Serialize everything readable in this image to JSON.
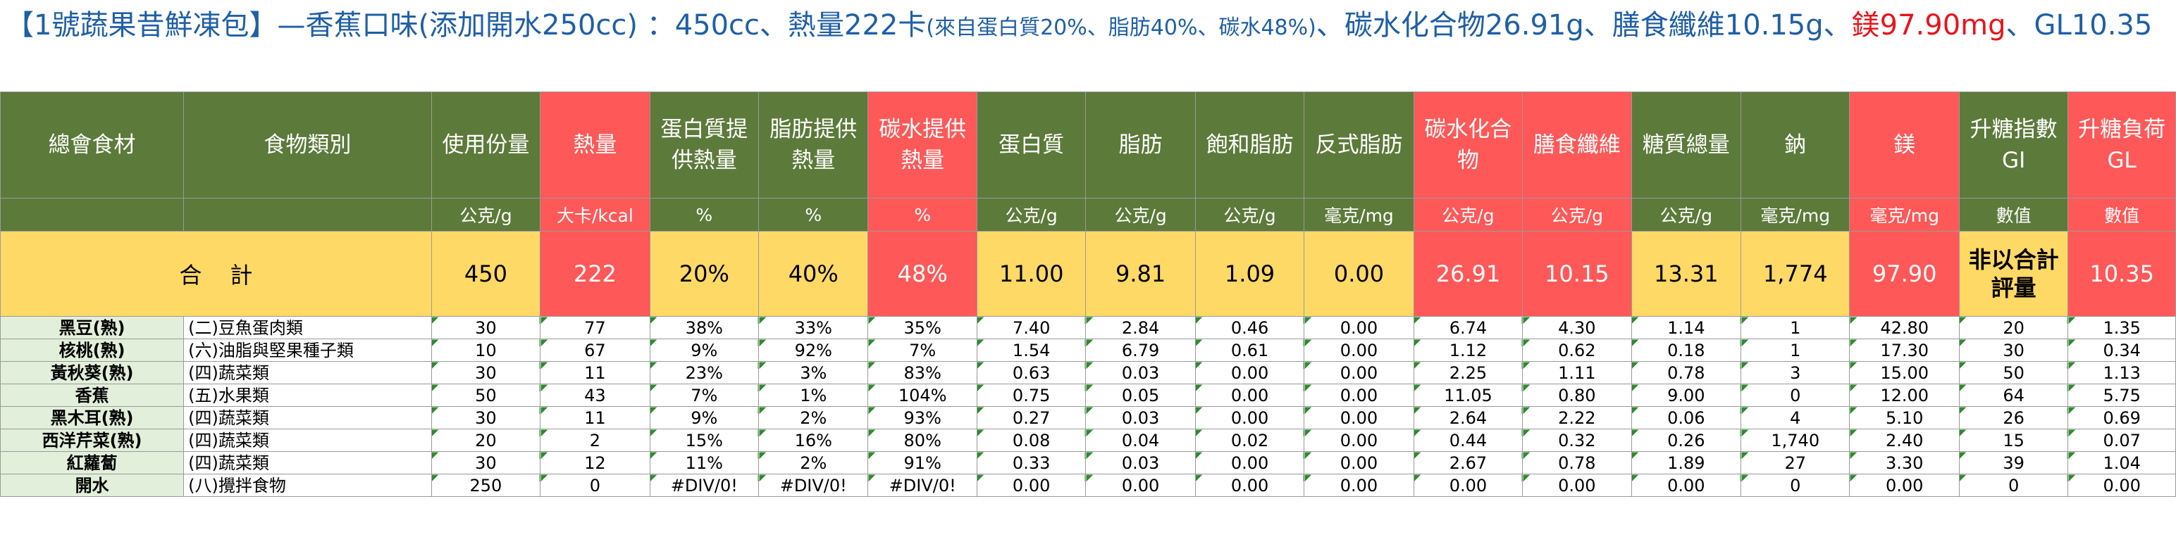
{
  "title": {
    "part1": "【1號蔬果昔鮮凍包】—香蕉口味(添加開水250cc) ：450cc、熱量222卡",
    "part2_small": "(來自蛋白質20%、脂肪40%、碳水48%)",
    "part3": "、碳水化合物26.91g、膳食纖維10.15g、",
    "part4_red": "鎂97.90mg",
    "part5": "、GL10.35"
  },
  "headers": [
    {
      "label": "總會食材",
      "unit": "",
      "color": "g"
    },
    {
      "label": "食物類別",
      "unit": "",
      "color": "g"
    },
    {
      "label": "使用份量",
      "unit": "公克/g",
      "color": "g"
    },
    {
      "label": "熱量",
      "unit": "大卡/kcal",
      "color": "r"
    },
    {
      "label": "蛋白質提供熱量",
      "unit": "%",
      "color": "g"
    },
    {
      "label": "脂肪提供熱量",
      "unit": "%",
      "color": "g"
    },
    {
      "label": "碳水提供熱量",
      "unit": "%",
      "color": "r"
    },
    {
      "label": "蛋白質",
      "unit": "公克/g",
      "color": "g"
    },
    {
      "label": "脂肪",
      "unit": "公克/g",
      "color": "g"
    },
    {
      "label": "飽和脂肪",
      "unit": "公克/g",
      "color": "g"
    },
    {
      "label": "反式脂肪",
      "unit": "毫克/mg",
      "color": "g"
    },
    {
      "label": "碳水化合物",
      "unit": "公克/g",
      "color": "r"
    },
    {
      "label": "膳食纖維",
      "unit": "公克/g",
      "color": "r"
    },
    {
      "label": "糖質總量",
      "unit": "公克/g",
      "color": "g"
    },
    {
      "label": "鈉",
      "unit": "毫克/mg",
      "color": "g"
    },
    {
      "label": "鎂",
      "unit": "毫克/mg",
      "color": "r"
    },
    {
      "label": "升糖指數GI",
      "unit": "數值",
      "color": "g"
    },
    {
      "label": "升糖負荷GL",
      "unit": "數值",
      "color": "r"
    }
  ],
  "total": {
    "label": "合計",
    "values": [
      "450",
      "222",
      "20%",
      "40%",
      "48%",
      "11.00",
      "9.81",
      "1.09",
      "0.00",
      "26.91",
      "10.15",
      "13.31",
      "1,774",
      "97.90",
      "非以合計評量",
      "10.35"
    ]
  },
  "rows": [
    {
      "name": "黑豆(熟)",
      "category": "(二)豆魚蛋肉類",
      "values": [
        "30",
        "77",
        "38%",
        "33%",
        "35%",
        "7.40",
        "2.84",
        "0.46",
        "0.00",
        "6.74",
        "4.30",
        "1.14",
        "1",
        "42.80",
        "20",
        "1.35"
      ]
    },
    {
      "name": "核桃(熟)",
      "category": "(六)油脂與堅果種子類",
      "values": [
        "10",
        "67",
        "9%",
        "92%",
        "7%",
        "1.54",
        "6.79",
        "0.61",
        "0.00",
        "1.12",
        "0.62",
        "0.18",
        "1",
        "17.30",
        "30",
        "0.34"
      ]
    },
    {
      "name": "黃秋葵(熟)",
      "category": "(四)蔬菜類",
      "values": [
        "30",
        "11",
        "23%",
        "3%",
        "83%",
        "0.63",
        "0.03",
        "0.00",
        "0.00",
        "2.25",
        "1.11",
        "0.78",
        "3",
        "15.00",
        "50",
        "1.13"
      ]
    },
    {
      "name": "香蕉",
      "category": "(五)水果類",
      "values": [
        "50",
        "43",
        "7%",
        "1%",
        "104%",
        "0.75",
        "0.05",
        "0.00",
        "0.00",
        "11.05",
        "0.80",
        "9.00",
        "0",
        "12.00",
        "64",
        "5.75"
      ]
    },
    {
      "name": "黑木耳(熟)",
      "category": "(四)蔬菜類",
      "values": [
        "30",
        "11",
        "9%",
        "2%",
        "93%",
        "0.27",
        "0.03",
        "0.00",
        "0.00",
        "2.64",
        "2.22",
        "0.06",
        "4",
        "5.10",
        "26",
        "0.69"
      ]
    },
    {
      "name": "西洋芹菜(熟)",
      "category": "(四)蔬菜類",
      "values": [
        "20",
        "2",
        "15%",
        "16%",
        "80%",
        "0.08",
        "0.04",
        "0.02",
        "0.00",
        "0.44",
        "0.32",
        "0.26",
        "1,740",
        "2.40",
        "15",
        "0.07"
      ]
    },
    {
      "name": "紅蘿蔔",
      "category": "(四)蔬菜類",
      "values": [
        "30",
        "12",
        "11%",
        "2%",
        "91%",
        "0.33",
        "0.03",
        "0.00",
        "0.00",
        "2.67",
        "0.78",
        "1.89",
        "27",
        "3.30",
        "39",
        "1.04"
      ]
    },
    {
      "name": "開水",
      "category": "(八)攪拌食物",
      "values": [
        "250",
        "0",
        "#DIV/0!",
        "#DIV/0!",
        "#DIV/0!",
        "0.00",
        "0.00",
        "0.00",
        "0.00",
        "0.00",
        "0.00",
        "0.00",
        "0",
        "0.00",
        "0",
        "0.00"
      ]
    }
  ]
}
